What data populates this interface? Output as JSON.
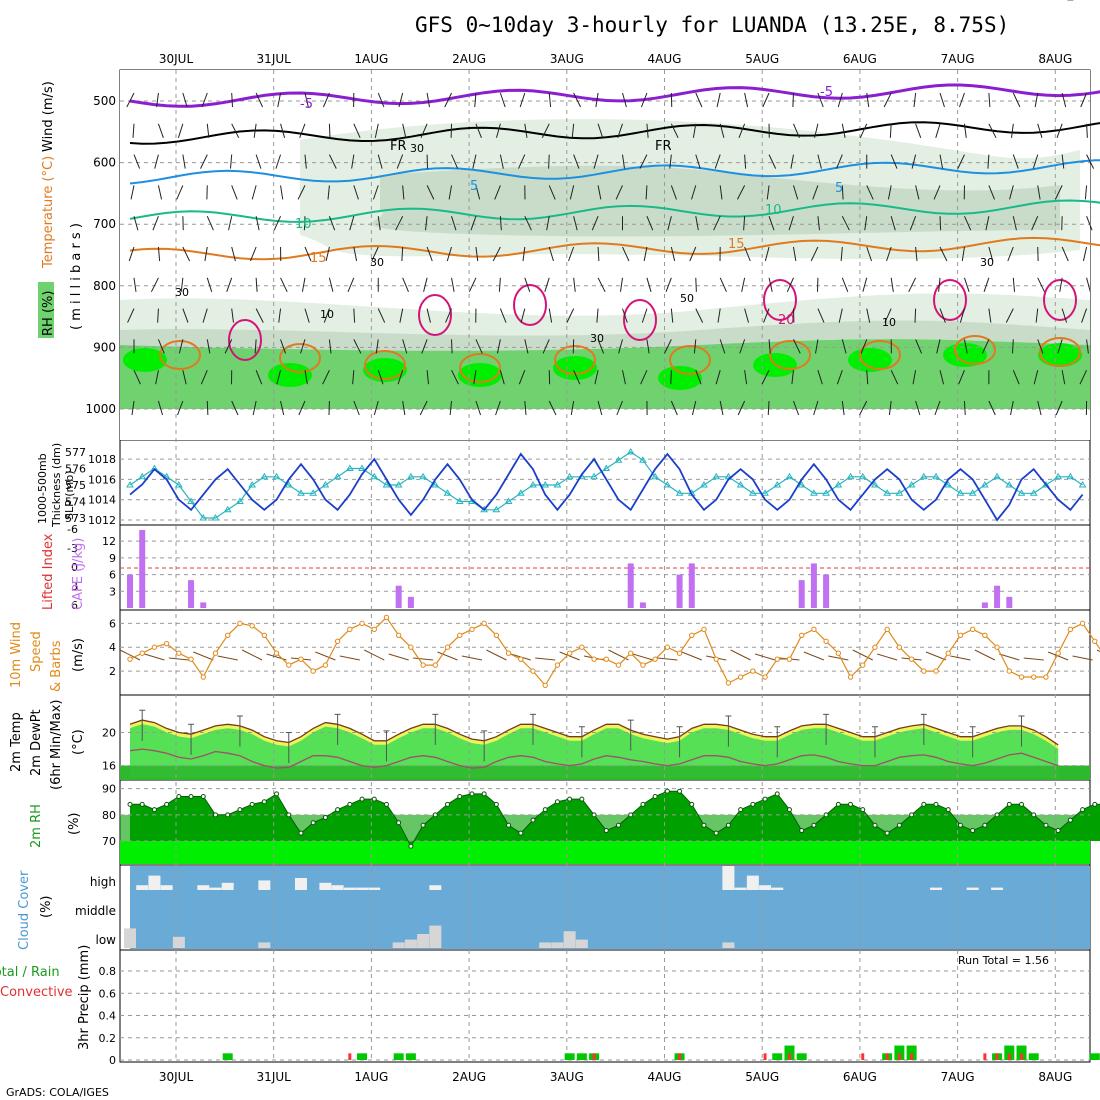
{
  "title": "GFS 0~10day 3-hourly for LUANDA (13.25E, 8.75S)",
  "footer": "GrADS: COLA/IGES",
  "dates": [
    "30JUL",
    "31JUL",
    "1AUG",
    "2AUG",
    "3AUG",
    "4AUG",
    "5AUG",
    "6AUG",
    "7AUG",
    "8AUG"
  ],
  "colors": {
    "rh_light": "#e2efe2",
    "rh_mid": "#c9dcc9",
    "rh_dark": "#9db09f",
    "moist_green": "#6fd26f",
    "bright_green": "#00ee00",
    "temp_purple": "#8a1fcf",
    "temp_blue": "#1f8fe0",
    "temp_teal": "#19b98a",
    "temp_orange": "#e07a1f",
    "temp_magenta": "#d3147a",
    "slp": "#1b3fc9",
    "thickness": "#26b5c0",
    "cape": "#c070f0",
    "wind": "#e08a1a",
    "temp_fill": "#55e055",
    "dew_fill": "#2eb82e",
    "rh2m_dark": "#00a000",
    "rh2m_light": "#00ee00",
    "cloud_blue": "#6aaad6",
    "cloud_white": "#f0f0f0",
    "cloud_grey": "#d6d6d6",
    "precip_green": "#00c800",
    "precip_red": "#ff3030"
  },
  "panel1": {
    "labels": {
      "rh": "RH (%)",
      "temp": "Temperature (°C)",
      "wind": "Wind (m/s)",
      "pres": "( m i l l i b a r s )"
    },
    "yticks": [
      "500",
      "600",
      "700",
      "800",
      "900",
      "1000"
    ],
    "contour_labels": [
      {
        "text": "-5",
        "color": "#8a1fcf"
      },
      {
        "text": "-5",
        "color": "#8a1fcf"
      },
      {
        "text": "FR",
        "color": "#000"
      },
      {
        "text": "FR",
        "color": "#000"
      },
      {
        "text": "5",
        "color": "#1f8fe0"
      },
      {
        "text": "5",
        "color": "#1f8fe0"
      },
      {
        "text": "10",
        "color": "#19b98a"
      },
      {
        "text": "10",
        "color": "#19b98a"
      },
      {
        "text": "15",
        "color": "#e07a1f"
      },
      {
        "text": "15",
        "color": "#e07a1f"
      },
      {
        "text": "20",
        "color": "#d3147a"
      },
      {
        "text": "30",
        "color": "#888"
      },
      {
        "text": "30",
        "color": "#888"
      },
      {
        "text": "30",
        "color": "#888"
      },
      {
        "text": "30",
        "color": "#888"
      },
      {
        "text": "10",
        "color": "#888"
      },
      {
        "text": "10",
        "color": "#888"
      },
      {
        "text": "50",
        "color": "#888"
      },
      {
        "text": "30",
        "color": "#888"
      }
    ]
  },
  "panel2": {
    "labels": {
      "thick": "1000-500mb",
      "thick2": "Thickness (dm)",
      "slp": "SLP (mb)"
    },
    "left_ticks": [
      "577",
      "576",
      "575",
      "574",
      "573"
    ],
    "right_ticks": [
      "1018",
      "1016",
      "1014",
      "1012"
    ]
  },
  "panel3": {
    "labels": {
      "li": "Lifted Index",
      "cape": "CAPE (J/kg)"
    },
    "left_ticks": [
      "-6",
      "-3",
      "0",
      "3",
      "6"
    ],
    "right_ticks": [
      "12",
      "9",
      "6",
      "3"
    ]
  },
  "panel4": {
    "labels": {
      "l1": "10m Wind",
      "l2": "Speed",
      "l3": "& Barbs",
      "unit": "(m/s)"
    },
    "ticks": [
      "6",
      "4",
      "2"
    ]
  },
  "panel5": {
    "labels": {
      "l1": "2m Temp",
      "l2": "2m DewPt",
      "l3": "(6hr Min/Max)",
      "unit": "(°C)"
    },
    "ticks": [
      "20",
      "16"
    ]
  },
  "panel6": {
    "labels": {
      "l1": "2m RH",
      "unit": "(%)"
    },
    "ticks": [
      "90",
      "80",
      "70"
    ]
  },
  "panel7": {
    "labels": {
      "l1": "Cloud Cover",
      "unit": "(%)"
    },
    "ticks": [
      "high",
      "middle",
      "low"
    ]
  },
  "panel8": {
    "labels": {
      "l1": "Total / Rain",
      "l2": "Convective",
      "l3": "3hr Precip (mm)"
    },
    "ticks": [
      "0.8",
      "0.6",
      "0.4",
      "0.2",
      "0"
    ],
    "run_total": "Run Total = 1.56"
  },
  "chart_data": [
    {
      "type": "line",
      "name_panel": "SLP / Thickness",
      "x_step_hours": 3,
      "series": [
        {
          "name": "SLP (mb)",
          "values": [
            1014.5,
            1015.5,
            1017,
            1016,
            1014,
            1013,
            1014.5,
            1016,
            1017,
            1015.5,
            1014,
            1013,
            1014,
            1016,
            1017.5,
            1016,
            1014,
            1013,
            1014.5,
            1016.5,
            1018,
            1016,
            1014,
            1012.5,
            1014,
            1016,
            1017.5,
            1016,
            1014,
            1013,
            1014.5,
            1016.5,
            1018.5,
            1017,
            1014.5,
            1013,
            1014.5,
            1016.5,
            1018,
            1016,
            1014,
            1013,
            1015,
            1017,
            1018.5,
            1017,
            1014.5,
            1013,
            1014,
            1016,
            1017,
            1016,
            1014,
            1013,
            1014,
            1016,
            1017.5,
            1016,
            1014,
            1013,
            1014.5,
            1016,
            1017,
            1016,
            1014,
            1013,
            1014,
            1016,
            1017,
            1016,
            1014,
            1012,
            1013.5,
            1016,
            1017,
            1015.5,
            1014,
            1013,
            1014.5
          ]
        },
        {
          "name": "Thickness (dm)",
          "values": [
            575,
            575.5,
            576,
            575.5,
            575,
            574,
            573,
            573,
            573.5,
            574,
            575,
            575.5,
            575.5,
            575,
            574.5,
            574.5,
            575,
            575.5,
            576,
            576,
            575.5,
            575,
            575,
            575.5,
            575.5,
            575,
            574.5,
            574,
            574,
            573.5,
            573.5,
            574,
            574.5,
            575,
            575,
            575,
            575.5,
            575.5,
            575.5,
            576,
            576.5,
            577,
            576.5,
            575.5,
            575,
            574.5,
            574.5,
            575,
            575.5,
            575.5,
            575,
            574.5,
            574.5,
            575,
            575.5,
            575,
            574.5,
            574.5,
            575,
            575.5,
            575.5,
            575,
            574.5,
            574.5,
            575,
            575.5,
            575.5,
            575,
            574.5,
            574.5,
            575,
            575.5,
            575,
            574.5,
            574.5,
            575,
            575.5,
            575.5,
            575
          ]
        }
      ]
    },
    {
      "type": "bar",
      "name_panel": "CAPE (J/kg)",
      "values": [
        6,
        14,
        0,
        0,
        0,
        5,
        1,
        0,
        0,
        0,
        0,
        0,
        0,
        0,
        0,
        0,
        0,
        0,
        0,
        0,
        0,
        0,
        4,
        2,
        0,
        0,
        0,
        0,
        0,
        0,
        0,
        0,
        0,
        0,
        0,
        0,
        0,
        0,
        0,
        0,
        0,
        8,
        1,
        0,
        0,
        6,
        8,
        0,
        0,
        0,
        0,
        0,
        0,
        0,
        0,
        5,
        8,
        6,
        0,
        0,
        0,
        0,
        0,
        0,
        0,
        0,
        0,
        0,
        0,
        0,
        1,
        4,
        2,
        0,
        0,
        0,
        0,
        0,
        0,
        0,
        0
      ]
    },
    {
      "type": "line",
      "name_panel": "10m Wind Speed (m/s)",
      "values": [
        3,
        3.5,
        4,
        4.3,
        3.5,
        3,
        1.5,
        3.5,
        5,
        6,
        5.8,
        5,
        3.5,
        2.5,
        3,
        2,
        2.5,
        4.5,
        5.5,
        6,
        5.5,
        6.5,
        5,
        4,
        2.5,
        2.5,
        4,
        5,
        5.5,
        6,
        5,
        3.5,
        3,
        2,
        0.8,
        2.5,
        3.5,
        4,
        3,
        3,
        2.5,
        3.5,
        2.5,
        3,
        4,
        3.5,
        5,
        5.5,
        3,
        1,
        1.5,
        2,
        1.5,
        3,
        3,
        5,
        5.5,
        4.5,
        3.5,
        1.5,
        2.5,
        4,
        5.5,
        4,
        3,
        2,
        2,
        3.5,
        5,
        5.5,
        5,
        4,
        2,
        1.5,
        1.5,
        1.5,
        3.5,
        5.5,
        6,
        4.5,
        3
      ]
    },
    {
      "type": "area",
      "name_panel": "2m Temp / DewPt (°C)",
      "series": [
        {
          "name": "2m Temp",
          "values": [
            21,
            21.5,
            21.2,
            20.5,
            20,
            19.8,
            20.3,
            20.8,
            21,
            20.8,
            20.3,
            19.5,
            19,
            18.8,
            19.5,
            20.5,
            21.2,
            21,
            20.5,
            19.8,
            19,
            19,
            19.8,
            20.5,
            21,
            21,
            20.5,
            19.8,
            19.2,
            19,
            19.5,
            20.3,
            21,
            21,
            20.5,
            20,
            19.5,
            19.5,
            20.3,
            21,
            21,
            20.3,
            19.8,
            19.5,
            19.2,
            19.5,
            20.5,
            21,
            21,
            20.8,
            20.3,
            19.8,
            19.5,
            19.5,
            20.2,
            20.8,
            21,
            21,
            20.5,
            20,
            19.5,
            19.5,
            20,
            20.5,
            20.8,
            21,
            20.5,
            20,
            19.5,
            19.5,
            20,
            20.5,
            20.8,
            20.8,
            20.3,
            19.5,
            18.5
          ]
        },
        {
          "name": "2m DewPt",
          "values": [
            17.8,
            18,
            17.8,
            17.5,
            17,
            16.8,
            17.2,
            17.7,
            17.5,
            17.2,
            16.5,
            16,
            15.7,
            15.8,
            16.5,
            17.2,
            17.2,
            17,
            16.5,
            16,
            15.8,
            16,
            16.5,
            17,
            17.2,
            17,
            16.5,
            16,
            15.7,
            15.8,
            16.5,
            17,
            17.2,
            17,
            16.5,
            16.2,
            16,
            16.2,
            16.8,
            17.2,
            17,
            16.7,
            16.5,
            16.2,
            16,
            16.2,
            16.7,
            17.2,
            17.2,
            17,
            16.5,
            16.2,
            16,
            16.2,
            16.7,
            17.2,
            17.3,
            17,
            16.5,
            16.2,
            16,
            16,
            16.5,
            17,
            17.2,
            17.3,
            17,
            16.5,
            16.2,
            16,
            16.3,
            16.8,
            17.3,
            17.5,
            17,
            16.5,
            16
          ]
        }
      ]
    },
    {
      "type": "area",
      "name_panel": "2m RH (%)",
      "values": [
        84,
        84,
        82,
        84,
        87,
        87,
        87,
        80,
        80,
        82,
        84,
        85,
        88,
        80,
        73,
        77,
        79,
        82,
        84,
        86,
        86,
        84,
        77,
        68,
        76,
        80,
        84,
        87,
        88,
        88,
        84,
        76,
        73,
        78,
        82,
        85,
        86,
        86,
        80,
        74,
        76,
        80,
        84,
        87,
        89,
        89,
        84,
        76,
        73,
        76,
        82,
        84,
        86,
        88,
        82,
        74,
        76,
        80,
        84,
        84,
        82,
        76,
        73,
        76,
        80,
        84,
        84,
        82,
        76,
        74,
        76,
        80,
        84,
        84,
        80,
        76,
        74,
        78,
        82,
        84,
        84
      ]
    },
    {
      "type": "bar",
      "name_panel": "Cloud Cover (%)",
      "series": [
        {
          "name": "high",
          "values": [
            0,
            20,
            60,
            20,
            0,
            0,
            20,
            10,
            30,
            0,
            0,
            40,
            0,
            0,
            50,
            0,
            30,
            20,
            10,
            10,
            10,
            0,
            0,
            0,
            0,
            20,
            0,
            0,
            0,
            0,
            0,
            0,
            0,
            0,
            0,
            0,
            0,
            0,
            0,
            0,
            0,
            0,
            0,
            0,
            0,
            0,
            0,
            0,
            0,
            100,
            10,
            60,
            20,
            10,
            0,
            0,
            0,
            0,
            0,
            0,
            0,
            0,
            0,
            0,
            0,
            0,
            10,
            0,
            0,
            10,
            0,
            10,
            0,
            0,
            0,
            0,
            0,
            0,
            0,
            0,
            0
          ]
        },
        {
          "name": "low",
          "values": [
            70,
            0,
            0,
            0,
            40,
            0,
            0,
            0,
            0,
            0,
            0,
            20,
            0,
            0,
            0,
            0,
            0,
            0,
            0,
            0,
            0,
            0,
            20,
            30,
            50,
            80,
            0,
            0,
            0,
            0,
            0,
            0,
            0,
            0,
            20,
            20,
            60,
            30,
            0,
            0,
            0,
            0,
            0,
            0,
            0,
            0,
            0,
            0,
            0,
            20,
            0,
            0,
            0,
            0,
            0,
            0,
            0,
            0,
            0,
            0,
            0,
            0,
            0,
            0,
            0,
            0,
            0,
            0,
            0,
            0,
            0,
            0,
            0,
            0,
            0,
            0,
            0,
            0,
            0,
            0,
            70
          ]
        }
      ]
    },
    {
      "type": "bar",
      "name_panel": "3hr Precip (mm)",
      "series": [
        {
          "name": "Total",
          "values": [
            0,
            0,
            0,
            0,
            0,
            0,
            0,
            0,
            0.06,
            0,
            0,
            0,
            0,
            0,
            0,
            0,
            0,
            0,
            0,
            0.06,
            0,
            0,
            0.06,
            0.06,
            0,
            0,
            0,
            0,
            0,
            0,
            0,
            0,
            0,
            0,
            0,
            0,
            0.06,
            0.06,
            0.06,
            0,
            0,
            0,
            0,
            0,
            0,
            0.06,
            0,
            0,
            0,
            0,
            0,
            0,
            0,
            0.06,
            0.13,
            0.06,
            0,
            0,
            0,
            0,
            0,
            0,
            0.06,
            0.13,
            0.13,
            0,
            0,
            0,
            0,
            0,
            0,
            0.06,
            0.13,
            0.13,
            0.06,
            0,
            0,
            0,
            0,
            0.06,
            0.13
          ]
        },
        {
          "name": "Convective",
          "values": [
            0,
            0,
            0,
            0,
            0,
            0,
            0,
            0,
            0,
            0,
            0,
            0,
            0,
            0,
            0,
            0,
            0,
            0,
            0.06,
            0,
            0,
            0,
            0,
            0,
            0,
            0,
            0,
            0,
            0,
            0,
            0,
            0,
            0,
            0,
            0,
            0,
            0,
            0,
            0.06,
            0,
            0,
            0,
            0,
            0,
            0,
            0.06,
            0,
            0,
            0,
            0,
            0,
            0,
            0.06,
            0,
            0.06,
            0,
            0,
            0,
            0,
            0,
            0.06,
            0,
            0.06,
            0.06,
            0.06,
            0,
            0,
            0,
            0,
            0,
            0.06,
            0.06,
            0.06,
            0.06,
            0,
            0,
            0,
            0,
            0,
            0,
            0
          ]
        }
      ]
    }
  ]
}
